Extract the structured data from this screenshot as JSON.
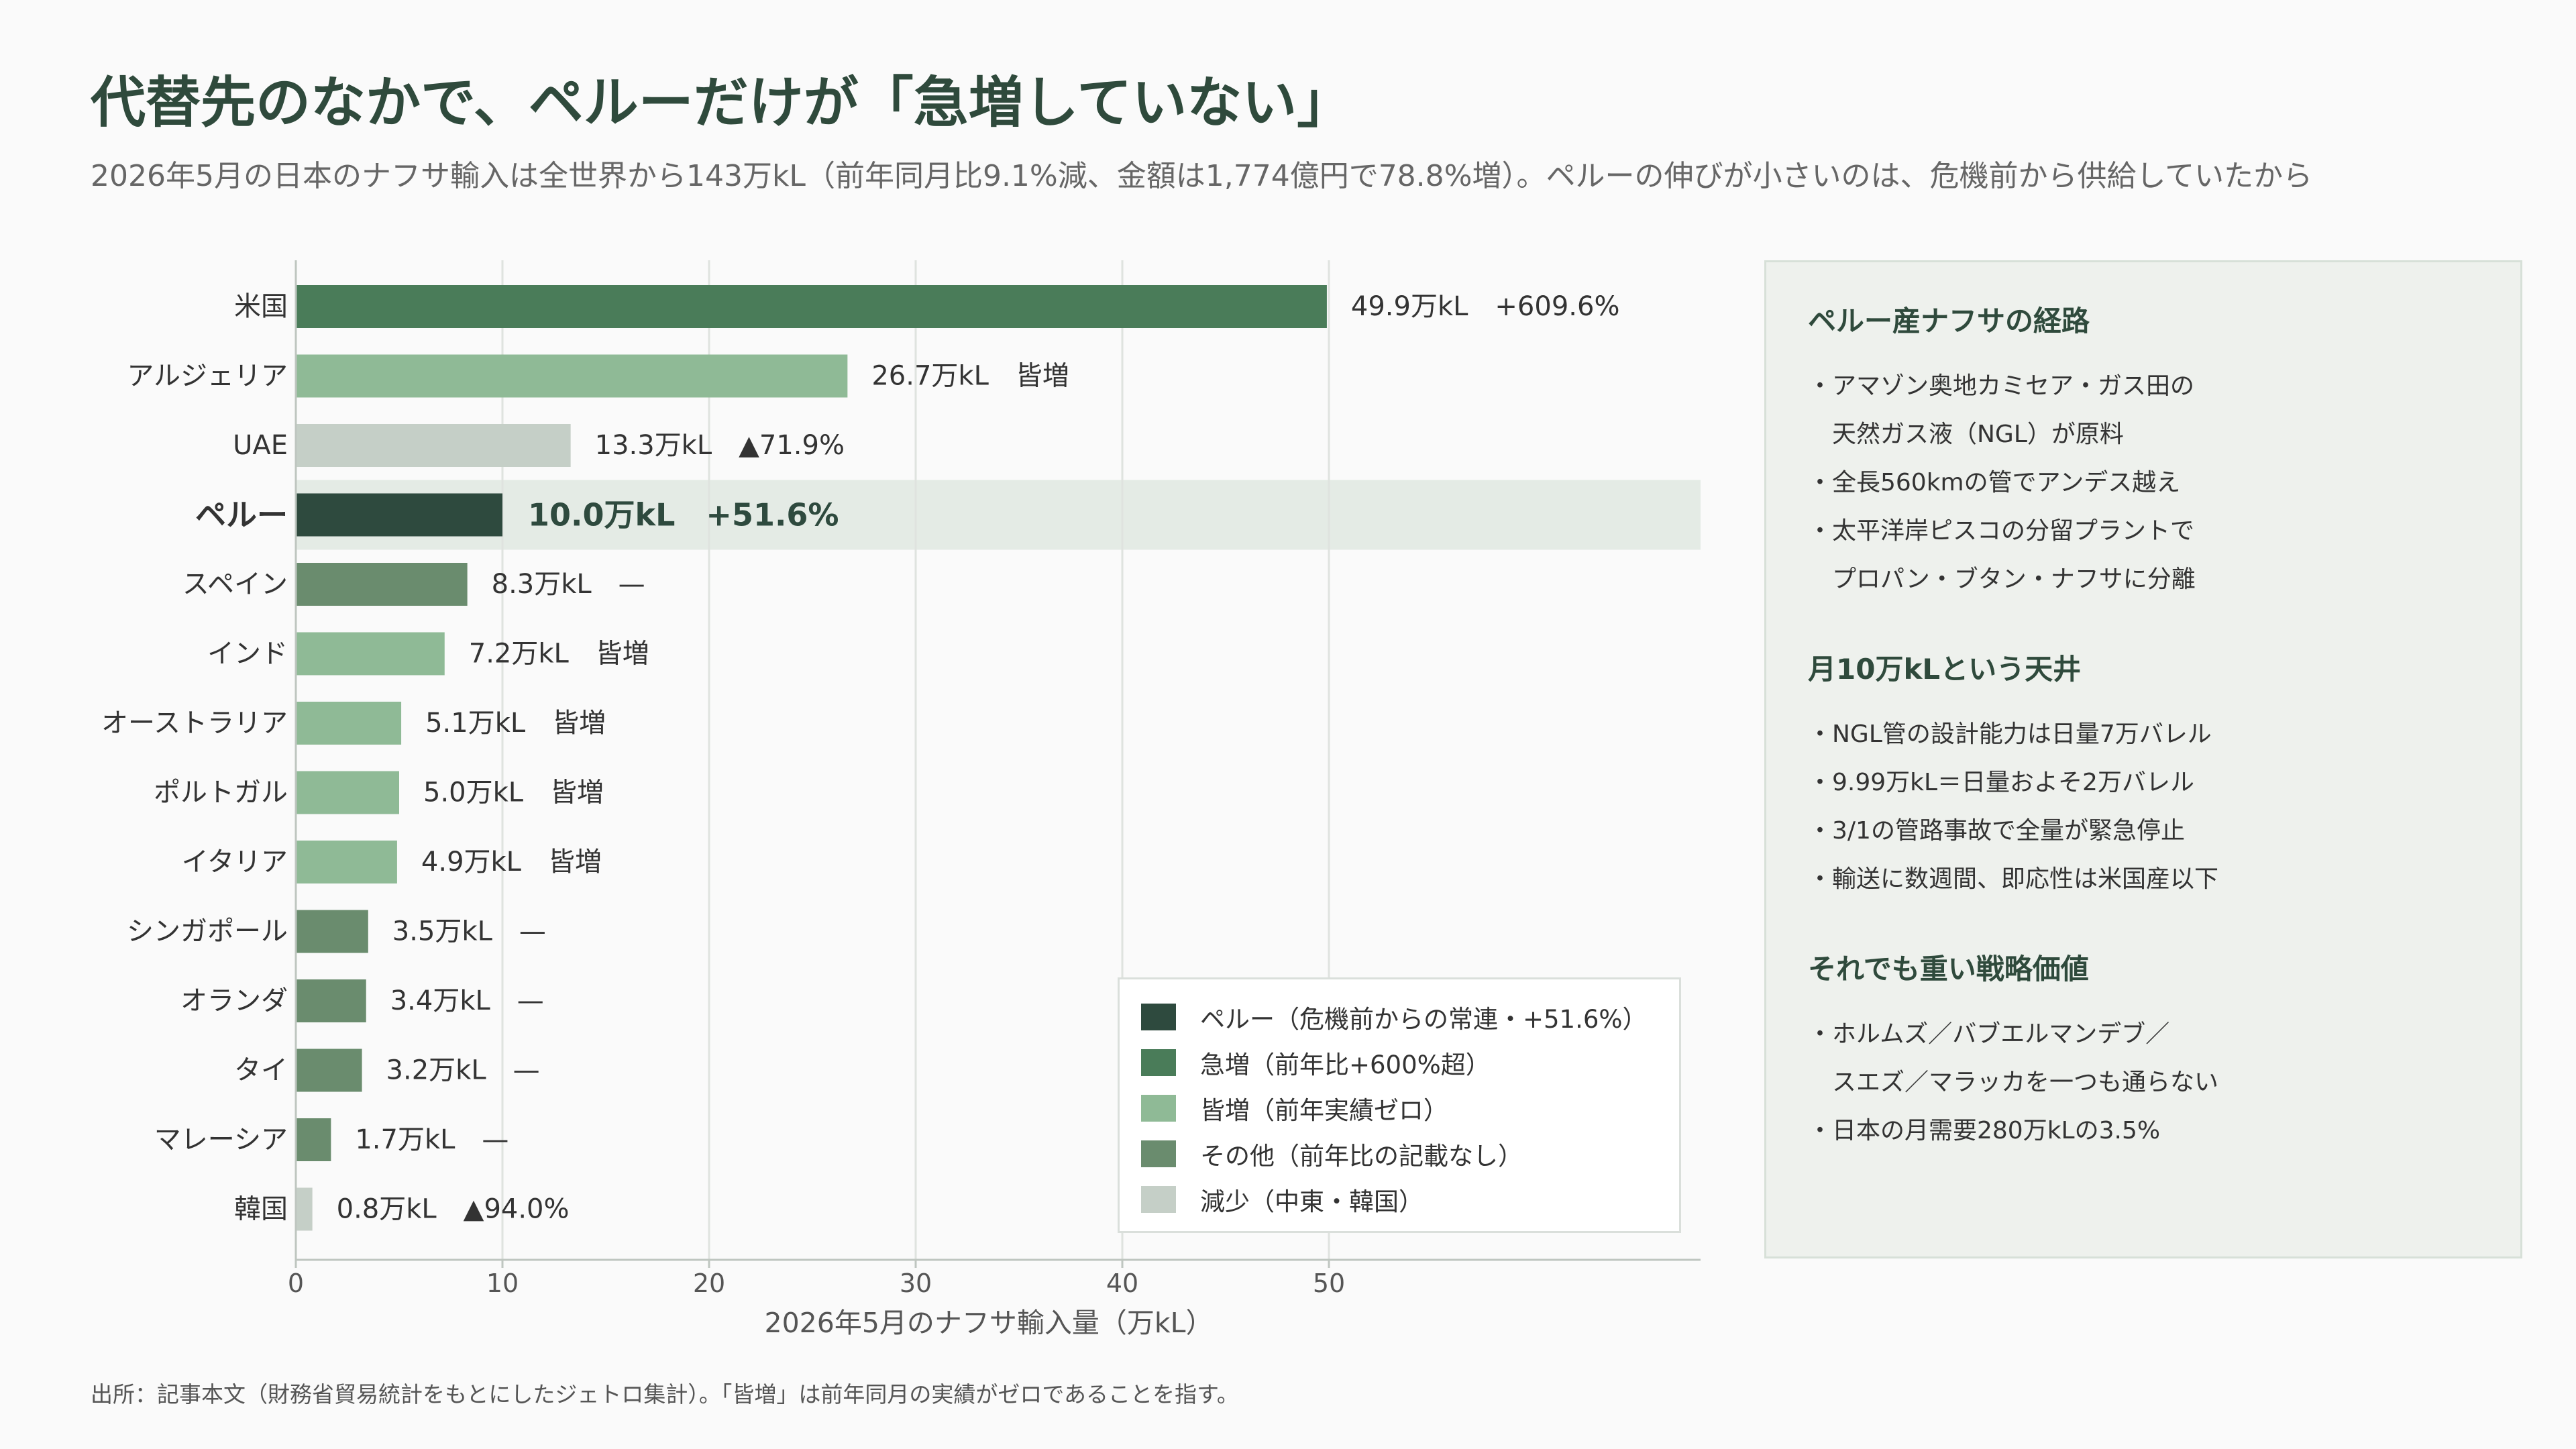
{
  "title": "代替先のなかで、ペルーだけが「急増していない」",
  "subtitle": "2026年5月の日本のナフサ輸入は全世界から143万kL（前年同月比9.1%減、金額は1,774億円で78.8%増）。ペルーの伸びが小さいのは、危機前から供給していたから",
  "source": "出所：記事本文（財務省貿易統計をもとにしたジェトロ集計）。「皆増」は前年同月の実績がゼロであることを指す。",
  "colors": {
    "peru": "#2e4a3e",
    "surge": "#4a7c59",
    "new": "#8fba96",
    "other": "#6a8c6e",
    "decrease": "#c5cfc7",
    "highlight": "#e4ebe5"
  },
  "chart_data": {
    "type": "bar",
    "orientation": "horizontal",
    "xlabel": "2026年5月のナフサ輸入量（万kL）",
    "xlim": [
      0,
      68
    ],
    "xticks": [
      0,
      10,
      20,
      30,
      40,
      50
    ],
    "grid": true,
    "highlight": "ペルー",
    "bars": [
      {
        "country": "米国",
        "value": 49.9,
        "label": "49.9万kL　+609.6%",
        "group": "surge"
      },
      {
        "country": "アルジェリア",
        "value": 26.7,
        "label": "26.7万kL　皆増",
        "group": "new"
      },
      {
        "country": "UAE",
        "value": 13.3,
        "label": "13.3万kL　▲71.9%",
        "group": "decrease"
      },
      {
        "country": "ペルー",
        "value": 10.0,
        "label": "10.0万kL　+51.6%",
        "group": "peru"
      },
      {
        "country": "スペイン",
        "value": 8.3,
        "label": "8.3万kL　—",
        "group": "other"
      },
      {
        "country": "インド",
        "value": 7.2,
        "label": "7.2万kL　皆増",
        "group": "new"
      },
      {
        "country": "オーストラリア",
        "value": 5.1,
        "label": "5.1万kL　皆増",
        "group": "new"
      },
      {
        "country": "ポルトガル",
        "value": 5.0,
        "label": "5.0万kL　皆増",
        "group": "new"
      },
      {
        "country": "イタリア",
        "value": 4.9,
        "label": "4.9万kL　皆増",
        "group": "new"
      },
      {
        "country": "シンガポール",
        "value": 3.5,
        "label": "3.5万kL　—",
        "group": "other"
      },
      {
        "country": "オランダ",
        "value": 3.4,
        "label": "3.4万kL　—",
        "group": "other"
      },
      {
        "country": "タイ",
        "value": 3.2,
        "label": "3.2万kL　—",
        "group": "other"
      },
      {
        "country": "マレーシア",
        "value": 1.7,
        "label": "1.7万kL　—",
        "group": "other"
      },
      {
        "country": "韓国",
        "value": 0.8,
        "label": "0.8万kL　▲94.0%",
        "group": "decrease"
      }
    ],
    "legend": {
      "placement": "bottom-right",
      "items": [
        {
          "label": "ペルー（危機前からの常連・+51.6%）",
          "group": "peru"
        },
        {
          "label": "急増（前年比+600%超）",
          "group": "surge"
        },
        {
          "label": "皆増（前年実績ゼロ）",
          "group": "new"
        },
        {
          "label": "その他（前年比の記載なし）",
          "group": "other"
        },
        {
          "label": "減少（中東・韓国）",
          "group": "decrease"
        }
      ]
    }
  },
  "panel": {
    "sections": [
      {
        "heading": "ペルー産ナフサの経路",
        "items": [
          "・アマゾン奥地カミセア・ガス田の",
          "　天然ガス液（NGL）が原料",
          "・全長560kmの管でアンデス越え",
          "・太平洋岸ピスコの分留プラントで",
          "　プロパン・ブタン・ナフサに分離"
        ]
      },
      {
        "heading": "月10万kLという天井",
        "items": [
          "・NGL管の設計能力は日量7万バレル",
          "・9.99万kL＝日量およそ2万バレル",
          "・3/1の管路事故で全量が緊急停止",
          "・輸送に数週間、即応性は米国産以下"
        ]
      },
      {
        "heading": "それでも重い戦略価値",
        "items": [
          "・ホルムズ／バブエルマンデブ／",
          "　スエズ／マラッカを一つも通らない",
          "・日本の月需要280万kLの3.5%"
        ]
      }
    ]
  }
}
